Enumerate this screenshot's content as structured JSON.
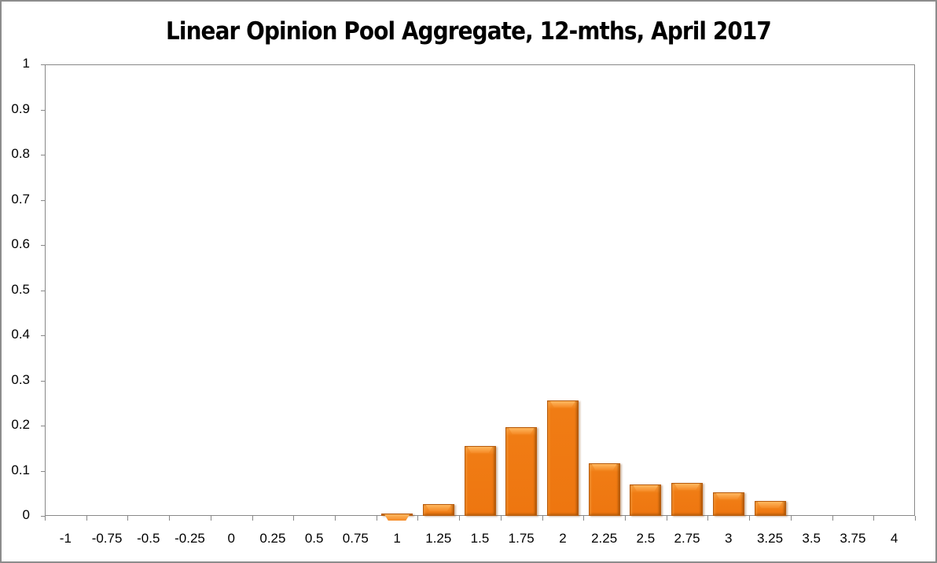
{
  "chart_data": {
    "type": "bar",
    "title": "Linear Opinion Pool Aggregate, 12-mths, April 2017",
    "xlabel": "",
    "ylabel": "",
    "ylim": [
      0,
      1
    ],
    "grid": false,
    "legend": null,
    "bar_color": "#F07810",
    "yticks": [
      "0",
      "0.1",
      "0.2",
      "0.3",
      "0.4",
      "0.5",
      "0.6",
      "0.7",
      "0.8",
      "0.9",
      "1"
    ],
    "categories": [
      "-1",
      "-0.75",
      "-0.5",
      "-0.25",
      "0",
      "0.25",
      "0.5",
      "0.75",
      "1",
      "1.25",
      "1.5",
      "1.75",
      "2",
      "2.25",
      "2.5",
      "2.75",
      "3",
      "3.25",
      "3.5",
      "3.75",
      "4"
    ],
    "values": [
      0,
      0,
      0,
      0,
      0,
      0,
      0,
      0,
      0.005,
      0.026,
      0.155,
      0.196,
      0.256,
      0.117,
      0.07,
      0.073,
      0.052,
      0.033,
      0,
      0,
      0
    ]
  }
}
